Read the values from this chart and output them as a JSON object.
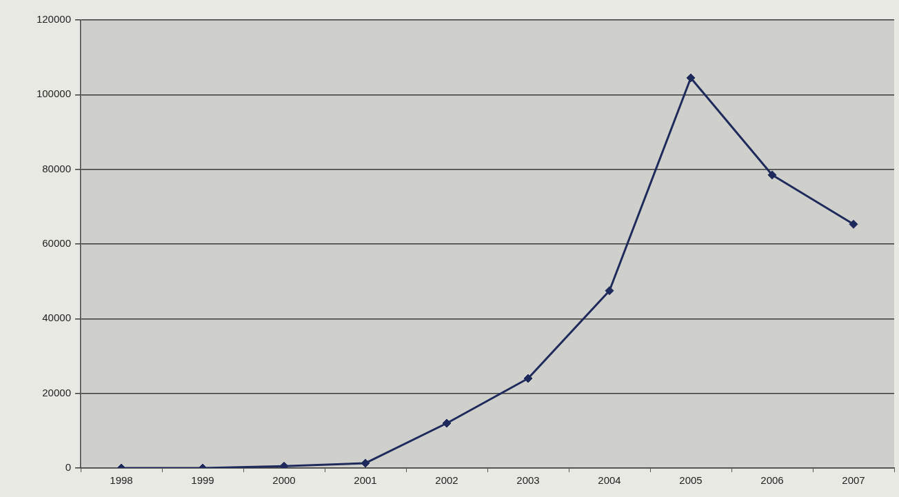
{
  "chart_data": {
    "type": "line",
    "categories": [
      "1998",
      "1999",
      "2000",
      "2001",
      "2002",
      "2003",
      "2004",
      "2005",
      "2006",
      "2007"
    ],
    "series": [
      {
        "color": "#1f2a5c",
        "values": [
          0,
          0,
          500,
          1300,
          12000,
          24000,
          47500,
          104500,
          78500,
          65300
        ]
      }
    ],
    "ylim": [
      0,
      120000
    ],
    "yticks": [
      0,
      20000,
      40000,
      60000,
      80000,
      100000,
      120000
    ],
    "grid": "y",
    "marker": "diamond",
    "line_style": "solid"
  }
}
